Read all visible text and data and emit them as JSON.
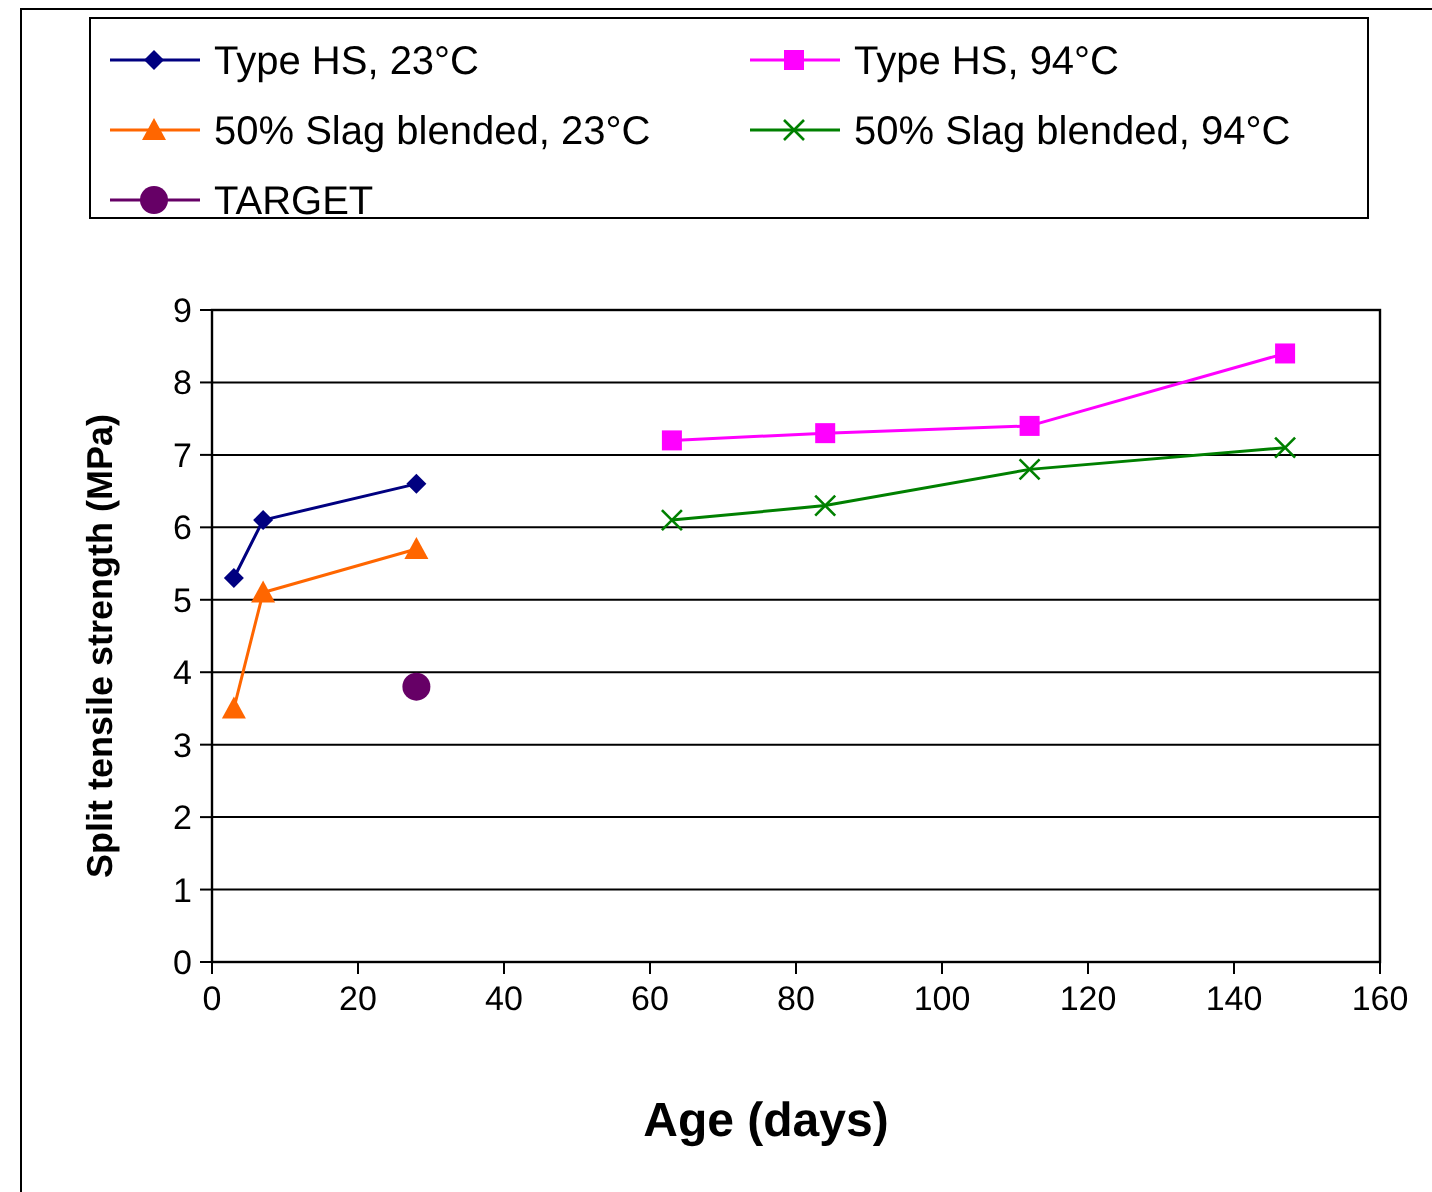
{
  "chart_data": {
    "type": "line",
    "xlabel": "Age (days)",
    "ylabel": "Split tensile strength (MPa)",
    "xlim": [
      0,
      160
    ],
    "xticks": [
      0,
      20,
      40,
      60,
      80,
      100,
      120,
      140,
      160
    ],
    "ylim": [
      0,
      9
    ],
    "yticks": [
      0,
      1,
      2,
      3,
      4,
      5,
      6,
      7,
      8,
      9
    ],
    "grid": "y",
    "legend": "top",
    "series": [
      {
        "name": "Type HS, 23°C",
        "color": "#000080",
        "marker": "diamond",
        "x": [
          3,
          7,
          28
        ],
        "values": [
          5.3,
          6.1,
          6.6
        ]
      },
      {
        "name": "Type HS, 94°C",
        "color": "#ff00ff",
        "marker": "square",
        "x": [
          63,
          84,
          112,
          147
        ],
        "values": [
          7.2,
          7.3,
          7.4,
          8.4
        ]
      },
      {
        "name": "50% Slag blended, 23°C",
        "color": "#ff6600",
        "marker": "triangle",
        "x": [
          3,
          7,
          28
        ],
        "values": [
          3.5,
          5.1,
          5.7
        ]
      },
      {
        "name": "50% Slag blended, 94°C",
        "color": "#008000",
        "marker": "cross",
        "x": [
          63,
          84,
          112,
          147
        ],
        "values": [
          6.1,
          6.3,
          6.8,
          7.1
        ]
      },
      {
        "name": "TARGET",
        "color": "#660066",
        "marker": "circle",
        "type": "scatter",
        "x": [
          28
        ],
        "values": [
          3.8
        ]
      }
    ]
  }
}
